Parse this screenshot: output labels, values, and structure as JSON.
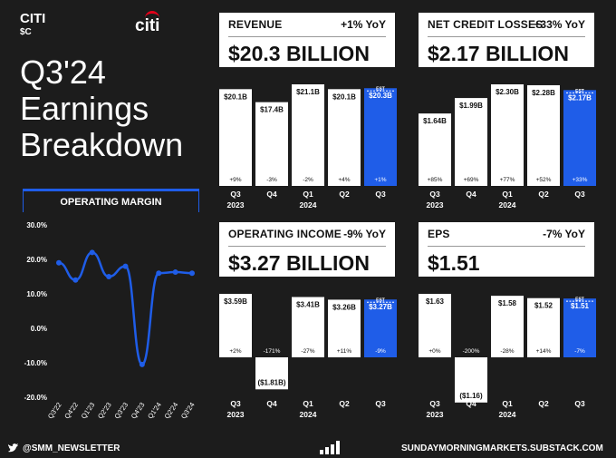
{
  "brand": {
    "name": "CITI",
    "ticker": "$C",
    "logo_text": "citi"
  },
  "title_lines": [
    "Q3'24",
    "Earnings",
    "Breakdown"
  ],
  "colors": {
    "accent": "#1f5de8",
    "bar": "#ffffff",
    "background": "#1c1c1c"
  },
  "panels": {
    "revenue": {
      "label": "REVENUE",
      "yoy": "+1% YoY",
      "value": "$20.3 BILLION"
    },
    "ncl": {
      "label": "NET CREDIT LOSSES",
      "yoy": "+33% YoY",
      "value": "$2.17 BILLION"
    },
    "opinc": {
      "label": "OPERATING INCOME",
      "yoy": "-9% YoY",
      "value": "$3.27 BILLION"
    },
    "eps": {
      "label": "EPS",
      "yoy": "-7% YoY",
      "value": "$1.51"
    }
  },
  "operating_margin_title": "OPERATING MARGIN",
  "est_label": "EST",
  "chart_data": [
    {
      "type": "line",
      "title": "OPERATING MARGIN",
      "categories": [
        "Q3'22",
        "Q4'22",
        "Q1'23",
        "Q2'23",
        "Q3'23",
        "Q4'23",
        "Q1'24",
        "Q2'24",
        "Q3'24"
      ],
      "values": [
        19,
        14,
        22,
        15,
        18,
        -10.5,
        16,
        16.3,
        16
      ],
      "ylim": [
        -20,
        30
      ],
      "yticks": [
        "30.0%",
        "20.0%",
        "10.0%",
        "0.0%",
        "-10.0%",
        "-20.0%"
      ],
      "grid": false
    },
    {
      "type": "bar",
      "name": "REVENUE",
      "categories": [
        [
          "Q3",
          "2023"
        ],
        [
          "Q4",
          ""
        ],
        [
          "Q1",
          "2024"
        ],
        [
          "Q2",
          ""
        ],
        [
          "Q3",
          ""
        ]
      ],
      "values": [
        20.1,
        17.4,
        21.1,
        20.1,
        20.3
      ],
      "value_labels": [
        "$20.1B",
        "$17.4B",
        "$21.1B",
        "$20.1B",
        "$20.3B"
      ],
      "yoy_labels": [
        "+9%",
        "-3%",
        "-2%",
        "+4%",
        "+1%"
      ]
    },
    {
      "type": "bar",
      "name": "NET CREDIT LOSSES",
      "categories": [
        [
          "Q3",
          "2023"
        ],
        [
          "Q4",
          ""
        ],
        [
          "Q1",
          "2024"
        ],
        [
          "Q2",
          ""
        ],
        [
          "Q3",
          ""
        ]
      ],
      "values": [
        1.64,
        1.99,
        2.3,
        2.28,
        2.17
      ],
      "value_labels": [
        "$1.64B",
        "$1.99B",
        "$2.30B",
        "$2.28B",
        "$2.17B"
      ],
      "yoy_labels": [
        "+85%",
        "+69%",
        "+77%",
        "+52%",
        "+33%"
      ]
    },
    {
      "type": "bar",
      "name": "OPERATING INCOME",
      "categories": [
        [
          "Q3",
          "2023"
        ],
        [
          "Q4",
          ""
        ],
        [
          "Q1",
          "2024"
        ],
        [
          "Q2",
          ""
        ],
        [
          "Q3",
          ""
        ]
      ],
      "values": [
        3.59,
        -1.81,
        3.41,
        3.26,
        3.27
      ],
      "value_labels": [
        "$3.59B",
        "($1.81B)",
        "$3.41B",
        "$3.26B",
        "$3.27B"
      ],
      "yoy_labels": [
        "+2%",
        "-171%",
        "-27%",
        "+11%",
        "-9%"
      ]
    },
    {
      "type": "bar",
      "name": "EPS",
      "categories": [
        [
          "Q3",
          "2023"
        ],
        [
          "Q4",
          ""
        ],
        [
          "Q1",
          "2024"
        ],
        [
          "Q2",
          ""
        ],
        [
          "Q3",
          ""
        ]
      ],
      "values": [
        1.63,
        -1.16,
        1.58,
        1.52,
        1.51
      ],
      "value_labels": [
        "$1.63",
        "($1.16)",
        "$1.58",
        "$1.52",
        "$1.51"
      ],
      "yoy_labels": [
        "+0%",
        "-200%",
        "-28%",
        "+14%",
        "-7%"
      ]
    }
  ],
  "footer": {
    "twitter": "@SMM_NEWSLETTER",
    "site": "SUNDAYMORNINGMARKETS.SUBSTACK.COM"
  }
}
